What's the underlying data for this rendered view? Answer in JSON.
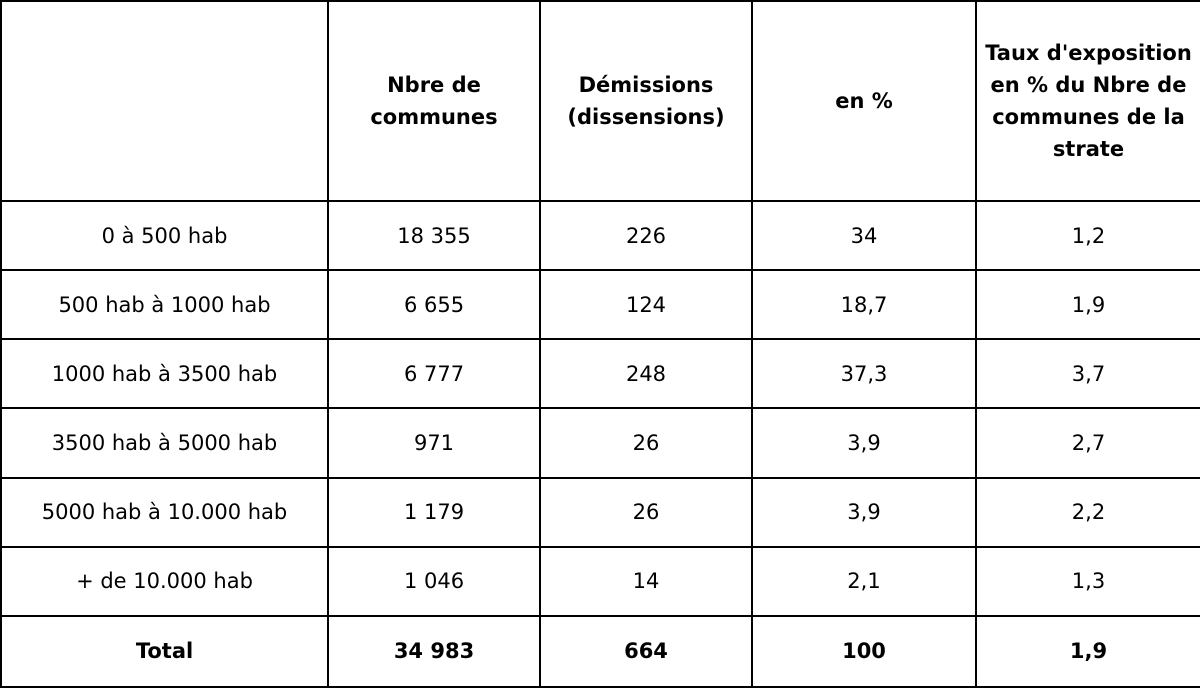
{
  "table": {
    "headers": [
      "",
      "Nbre de communes",
      "Démissions (dissensions)",
      "en %",
      "Taux d'exposition en % du Nbre de communes de la strate"
    ],
    "rows": [
      [
        "0 à 500 hab",
        "18 355",
        "226",
        "34",
        "1,2"
      ],
      [
        "500 hab à 1000 hab",
        "6 655",
        "124",
        "18,7",
        "1,9"
      ],
      [
        "1000 hab à 3500 hab",
        "6 777",
        "248",
        "37,3",
        "3,7"
      ],
      [
        "3500 hab à 5000 hab",
        "971",
        "26",
        "3,9",
        "2,7"
      ],
      [
        "5000 hab à 10.000 hab",
        "1 179",
        "26",
        "3,9",
        "2,2"
      ],
      [
        "+ de 10.000 hab",
        "1 046",
        "14",
        "2,1",
        "1,3"
      ]
    ],
    "total": [
      "Total",
      "34 983",
      "664",
      "100",
      "1,9"
    ]
  }
}
